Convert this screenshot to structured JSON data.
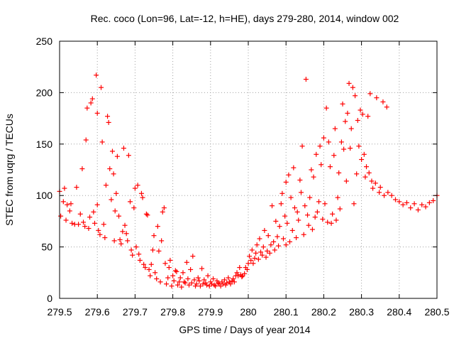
{
  "chart_data": {
    "type": "scatter",
    "title": "Rec. coco (Lon=96, Lat=-12, h=HE), days 279-280, 2014, window 002",
    "xlabel": "GPS time / Days of year 2014",
    "ylabel": "STEC from uqrg / TECUs",
    "xlim": [
      279.5,
      280.5
    ],
    "ylim": [
      0,
      250
    ],
    "xticks": [
      "279.5",
      "279.6",
      "279.7",
      "279.8",
      "279.9",
      "280",
      "280.1",
      "280.2",
      "280.3",
      "280.4",
      "280.5"
    ],
    "xtick_values": [
      279.5,
      279.6,
      279.7,
      279.8,
      279.9,
      280.0,
      280.1,
      280.2,
      280.3,
      280.4,
      280.5
    ],
    "yticks": [
      "0",
      "50",
      "100",
      "150",
      "200",
      "250"
    ],
    "ytick_values": [
      0,
      50,
      100,
      150,
      200,
      250
    ],
    "grid": true,
    "marker": "plus",
    "color": "#ff0000",
    "series": [
      {
        "values_xy": [
          [
            279.5,
            104
          ],
          [
            279.503,
            80
          ],
          [
            279.51,
            94
          ],
          [
            279.513,
            107
          ],
          [
            279.517,
            76
          ],
          [
            279.52,
            91
          ],
          [
            279.527,
            85
          ],
          [
            279.53,
            92
          ],
          [
            279.533,
            73
          ],
          [
            279.54,
            72
          ],
          [
            279.545,
            108
          ],
          [
            279.55,
            72
          ],
          [
            279.555,
            82
          ],
          [
            279.56,
            126
          ],
          [
            279.563,
            74
          ],
          [
            279.567,
            70
          ],
          [
            279.57,
            154
          ],
          [
            279.573,
            185
          ],
          [
            279.577,
            68
          ],
          [
            279.58,
            79
          ],
          [
            279.583,
            190
          ],
          [
            279.587,
            194
          ],
          [
            279.59,
            84
          ],
          [
            279.593,
            73
          ],
          [
            279.597,
            217
          ],
          [
            279.6,
            180
          ],
          [
            279.6,
            91
          ],
          [
            279.603,
            66
          ],
          [
            279.607,
            62
          ],
          [
            279.61,
            205
          ],
          [
            279.613,
            152
          ],
          [
            279.617,
            72
          ],
          [
            279.62,
            59
          ],
          [
            279.623,
            110
          ],
          [
            279.627,
            177
          ],
          [
            279.63,
            171
          ],
          [
            279.633,
            126
          ],
          [
            279.637,
            96
          ],
          [
            279.64,
            143
          ],
          [
            279.643,
            121
          ],
          [
            279.645,
            56
          ],
          [
            279.647,
            85
          ],
          [
            279.65,
            102
          ],
          [
            279.653,
            138
          ],
          [
            279.657,
            80
          ],
          [
            279.66,
            57
          ],
          [
            279.663,
            53
          ],
          [
            279.667,
            65
          ],
          [
            279.67,
            146
          ],
          [
            279.673,
            71
          ],
          [
            279.677,
            63
          ],
          [
            279.68,
            56
          ],
          [
            279.683,
            139
          ],
          [
            279.687,
            94
          ],
          [
            279.69,
            47
          ],
          [
            279.693,
            42
          ],
          [
            279.697,
            88
          ],
          [
            279.7,
            107
          ],
          [
            279.703,
            50
          ],
          [
            279.707,
            110
          ],
          [
            279.71,
            43
          ],
          [
            279.713,
            37
          ],
          [
            279.717,
            102
          ],
          [
            279.72,
            98
          ],
          [
            279.723,
            33
          ],
          [
            279.727,
            30
          ],
          [
            279.73,
            82
          ],
          [
            279.733,
            81
          ],
          [
            279.737,
            28
          ],
          [
            279.74,
            22
          ],
          [
            279.743,
            33
          ],
          [
            279.747,
            47
          ],
          [
            279.75,
            61
          ],
          [
            279.753,
            25
          ],
          [
            279.757,
            19
          ],
          [
            279.76,
            70
          ],
          [
            279.763,
            46
          ],
          [
            279.767,
            16
          ],
          [
            279.77,
            56
          ],
          [
            279.773,
            84
          ],
          [
            279.777,
            88
          ],
          [
            279.78,
            34
          ],
          [
            279.783,
            14
          ],
          [
            279.787,
            20
          ],
          [
            279.79,
            30
          ],
          [
            279.793,
            37
          ],
          [
            279.797,
            12
          ],
          [
            279.8,
            22
          ],
          [
            279.803,
            17
          ],
          [
            279.807,
            27
          ],
          [
            279.81,
            26
          ],
          [
            279.813,
            13
          ],
          [
            279.817,
            16
          ],
          [
            279.82,
            20
          ],
          [
            279.823,
            11
          ],
          [
            279.827,
            25
          ],
          [
            279.83,
            16
          ],
          [
            279.833,
            15
          ],
          [
            279.837,
            35
          ],
          [
            279.84,
            19
          ],
          [
            279.843,
            13
          ],
          [
            279.847,
            28
          ],
          [
            279.85,
            15
          ],
          [
            279.853,
            41
          ],
          [
            279.857,
            18
          ],
          [
            279.86,
            12
          ],
          [
            279.863,
            14
          ],
          [
            279.867,
            20
          ],
          [
            279.87,
            17
          ],
          [
            279.873,
            12
          ],
          [
            279.877,
            29
          ],
          [
            279.88,
            14
          ],
          [
            279.883,
            18
          ],
          [
            279.887,
            15
          ],
          [
            279.89,
            13
          ],
          [
            279.893,
            22
          ],
          [
            279.897,
            12
          ],
          [
            279.9,
            16
          ],
          [
            279.903,
            14
          ],
          [
            279.907,
            19
          ],
          [
            279.91,
            13
          ],
          [
            279.913,
            12
          ],
          [
            279.917,
            17
          ],
          [
            279.92,
            15
          ],
          [
            279.923,
            14
          ],
          [
            279.927,
            12
          ],
          [
            279.93,
            16
          ],
          [
            279.933,
            14
          ],
          [
            279.937,
            18
          ],
          [
            279.94,
            13
          ],
          [
            279.943,
            15
          ],
          [
            279.947,
            20
          ],
          [
            279.95,
            16
          ],
          [
            279.953,
            14
          ],
          [
            279.957,
            17
          ],
          [
            279.96,
            19
          ],
          [
            279.963,
            16
          ],
          [
            279.967,
            22
          ],
          [
            279.97,
            25
          ],
          [
            279.973,
            22
          ],
          [
            279.977,
            30
          ],
          [
            279.98,
            23
          ],
          [
            279.983,
            21
          ],
          [
            279.985,
            22
          ],
          [
            279.99,
            24
          ],
          [
            279.993,
            30
          ],
          [
            279.997,
            28
          ],
          [
            280.0,
            34
          ],
          [
            280.003,
            41
          ],
          [
            280.007,
            37
          ],
          [
            280.01,
            47
          ],
          [
            280.013,
            34
          ],
          [
            280.017,
            39
          ],
          [
            280.02,
            44
          ],
          [
            280.023,
            52
          ],
          [
            280.027,
            38
          ],
          [
            280.03,
            58
          ],
          [
            280.033,
            45
          ],
          [
            280.037,
            42
          ],
          [
            280.04,
            50
          ],
          [
            280.043,
            66
          ],
          [
            280.047,
            40
          ],
          [
            280.05,
            46
          ],
          [
            280.053,
            61
          ],
          [
            280.057,
            44
          ],
          [
            280.06,
            52
          ],
          [
            280.063,
            90
          ],
          [
            280.067,
            55
          ],
          [
            280.07,
            47
          ],
          [
            280.073,
            75
          ],
          [
            280.077,
            60
          ],
          [
            280.08,
            51
          ],
          [
            280.083,
            70
          ],
          [
            280.087,
            92
          ],
          [
            280.09,
            102
          ],
          [
            280.093,
            58
          ],
          [
            280.097,
            80
          ],
          [
            280.1,
            113
          ],
          [
            280.1,
            52
          ],
          [
            280.103,
            73
          ],
          [
            280.107,
            120
          ],
          [
            280.11,
            55
          ],
          [
            280.113,
            98
          ],
          [
            280.117,
            66
          ],
          [
            280.12,
            127
          ],
          [
            280.123,
            88
          ],
          [
            280.127,
            59
          ],
          [
            280.13,
            84
          ],
          [
            280.133,
            76
          ],
          [
            280.137,
            115
          ],
          [
            280.14,
            103
          ],
          [
            280.143,
            148
          ],
          [
            280.147,
            62
          ],
          [
            280.15,
            90
          ],
          [
            280.153,
            213
          ],
          [
            280.157,
            81
          ],
          [
            280.16,
            71
          ],
          [
            280.163,
            98
          ],
          [
            280.167,
            125
          ],
          [
            280.17,
            67
          ],
          [
            280.173,
            118
          ],
          [
            280.177,
            79
          ],
          [
            280.18,
            140
          ],
          [
            280.183,
            84
          ],
          [
            280.187,
            94
          ],
          [
            280.19,
            148
          ],
          [
            280.193,
            130
          ],
          [
            280.197,
            77
          ],
          [
            280.2,
            156
          ],
          [
            280.203,
            92
          ],
          [
            280.207,
            185
          ],
          [
            280.21,
            74
          ],
          [
            280.213,
            152
          ],
          [
            280.217,
            128
          ],
          [
            280.22,
            73
          ],
          [
            280.223,
            82
          ],
          [
            280.227,
            139
          ],
          [
            280.23,
            165
          ],
          [
            280.233,
            76
          ],
          [
            280.237,
            98
          ],
          [
            280.24,
            122
          ],
          [
            280.243,
            87
          ],
          [
            280.247,
            152
          ],
          [
            280.25,
            189
          ],
          [
            280.253,
            145
          ],
          [
            280.257,
            172
          ],
          [
            280.26,
            114
          ],
          [
            280.263,
            180
          ],
          [
            280.267,
            209
          ],
          [
            280.27,
            146
          ],
          [
            280.273,
            165
          ],
          [
            280.277,
            205
          ],
          [
            280.28,
            92
          ],
          [
            280.283,
            197
          ],
          [
            280.287,
            121
          ],
          [
            280.29,
            173
          ],
          [
            280.293,
            148
          ],
          [
            280.297,
            183
          ],
          [
            280.3,
            135
          ],
          [
            280.303,
            179
          ],
          [
            280.307,
            140
          ],
          [
            280.31,
            118
          ],
          [
            280.313,
            128
          ],
          [
            280.317,
            177
          ],
          [
            280.32,
            122
          ],
          [
            280.323,
            199
          ],
          [
            280.327,
            114
          ],
          [
            280.33,
            107
          ],
          [
            280.337,
            112
          ],
          [
            280.34,
            195
          ],
          [
            280.347,
            103
          ],
          [
            280.35,
            108
          ],
          [
            280.357,
            191
          ],
          [
            280.36,
            100
          ],
          [
            280.367,
            186
          ],
          [
            280.37,
            103
          ],
          [
            280.38,
            100
          ],
          [
            280.39,
            96
          ],
          [
            280.4,
            94
          ],
          [
            280.41,
            91
          ],
          [
            280.42,
            93
          ],
          [
            280.43,
            88
          ],
          [
            280.44,
            92
          ],
          [
            280.45,
            86
          ],
          [
            280.46,
            91
          ],
          [
            280.47,
            89
          ],
          [
            280.48,
            93
          ],
          [
            280.49,
            95
          ],
          [
            280.5,
            100
          ]
        ]
      }
    ]
  }
}
